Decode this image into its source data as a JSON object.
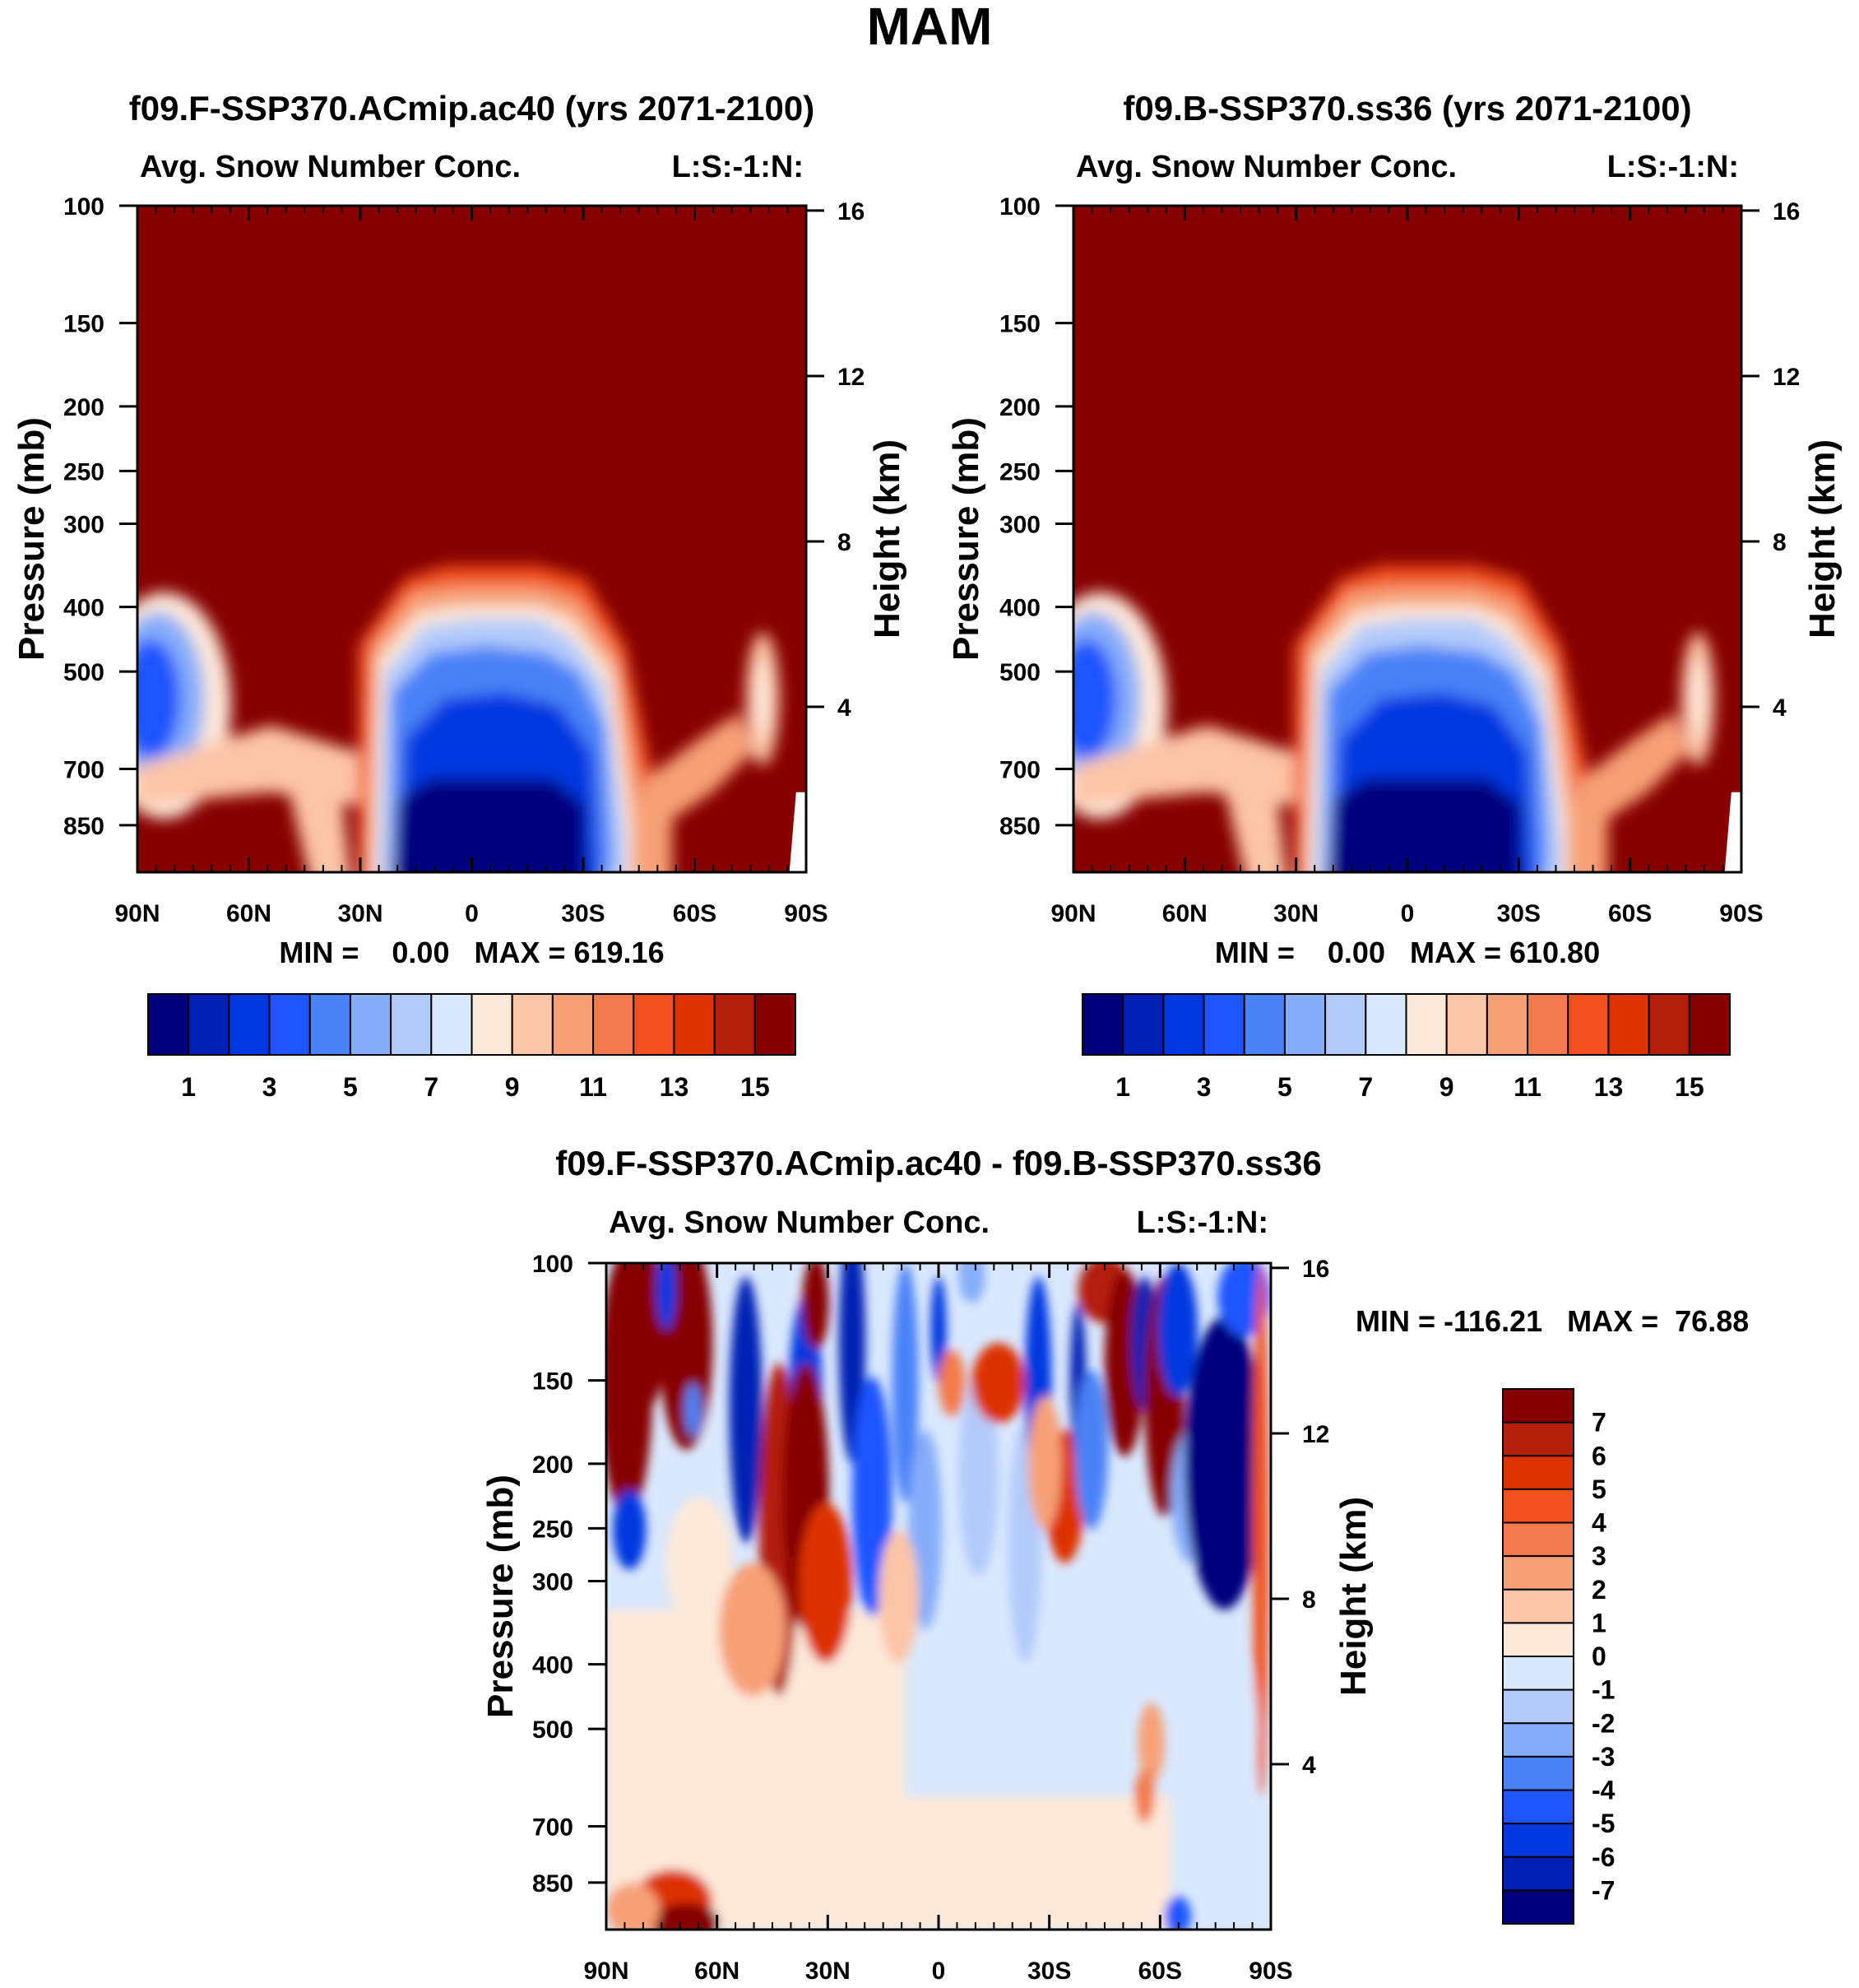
{
  "page": {
    "title": "MAM"
  },
  "colors": {
    "panel_scale": [
      "#00007f",
      "#0020b4",
      "#0038e0",
      "#1e55ff",
      "#4a82f7",
      "#86adf9",
      "#b3cbfa",
      "#d9e8fd",
      "#fde8d8",
      "#fcc5a8",
      "#f7a077",
      "#f37a4c",
      "#f1511f",
      "#dd3300",
      "#b41e0b",
      "#860000"
    ],
    "diff_scale": [
      "#00007f",
      "#0020b4",
      "#0038e0",
      "#1e55ff",
      "#4a82f7",
      "#86adf9",
      "#b3cbfa",
      "#d9e8fd",
      "#fde8d8",
      "#fcc5a8",
      "#f7a077",
      "#f37a4c",
      "#f1511f",
      "#dd3300",
      "#b41e0b",
      "#860000"
    ]
  },
  "chart_data": [
    {
      "id": "panel-left",
      "type": "heatmap",
      "title": "f09.F-SSP370.ACmip.ac40 (yrs 2071-2100)",
      "subtitle_left": "Avg. Snow Number Conc.",
      "subtitle_right": "L:S:-1:N:",
      "xlabel": "",
      "ylabel": "Pressure (mb)",
      "y2label": "Height (km)",
      "x_ticks": [
        "90N",
        "60N",
        "30N",
        "0",
        "30S",
        "60S",
        "90S"
      ],
      "x_range": [
        90,
        -90
      ],
      "y_ticks": [
        100,
        150,
        200,
        250,
        300,
        400,
        500,
        700,
        850
      ],
      "y_range": [
        100,
        1000
      ],
      "y2_ticks": [
        16,
        12,
        8,
        4
      ],
      "stats": "MIN =    0.00   MAX = 619.16",
      "min": 0.0,
      "max": 619.16,
      "colorbar_labels": [
        "1",
        "3",
        "5",
        "7",
        "9",
        "11",
        "13",
        "15"
      ],
      "colorbar_levels": 16
    },
    {
      "id": "panel-right",
      "type": "heatmap",
      "title": "f09.B-SSP370.ss36 (yrs 2071-2100)",
      "subtitle_left": "Avg. Snow Number Conc.",
      "subtitle_right": "L:S:-1:N:",
      "xlabel": "",
      "ylabel": "Pressure (mb)",
      "y2label": "Height (km)",
      "x_ticks": [
        "90N",
        "60N",
        "30N",
        "0",
        "30S",
        "60S",
        "90S"
      ],
      "x_range": [
        90,
        -90
      ],
      "y_ticks": [
        100,
        150,
        200,
        250,
        300,
        400,
        500,
        700,
        850
      ],
      "y_range": [
        100,
        1000
      ],
      "y2_ticks": [
        16,
        12,
        8,
        4
      ],
      "stats": "MIN =    0.00   MAX = 610.80",
      "min": 0.0,
      "max": 610.8,
      "colorbar_labels": [
        "1",
        "3",
        "5",
        "7",
        "9",
        "11",
        "13",
        "15"
      ],
      "colorbar_levels": 16
    },
    {
      "id": "panel-diff",
      "type": "heatmap",
      "title": "f09.F-SSP370.ACmip.ac40 - f09.B-SSP370.ss36",
      "subtitle_left": "Avg. Snow Number Conc.",
      "subtitle_right": "L:S:-1:N:",
      "xlabel": "",
      "ylabel": "Pressure (mb)",
      "y2label": "Height (km)",
      "x_ticks": [
        "90N",
        "60N",
        "30N",
        "0",
        "30S",
        "60S",
        "90S"
      ],
      "x_range": [
        90,
        -90
      ],
      "y_ticks": [
        100,
        150,
        200,
        250,
        300,
        400,
        500,
        700,
        850
      ],
      "y_range": [
        100,
        1000
      ],
      "y2_ticks": [
        16,
        12,
        8,
        4
      ],
      "stats": "MIN = -116.21   MAX =  76.88",
      "min": -116.21,
      "max": 76.88,
      "colorbar_labels": [
        "7",
        "6",
        "5",
        "4",
        "3",
        "2",
        "1",
        "0",
        "-1",
        "-2",
        "-3",
        "-4",
        "-5",
        "-6",
        "-7"
      ],
      "colorbar_levels": 16
    }
  ]
}
